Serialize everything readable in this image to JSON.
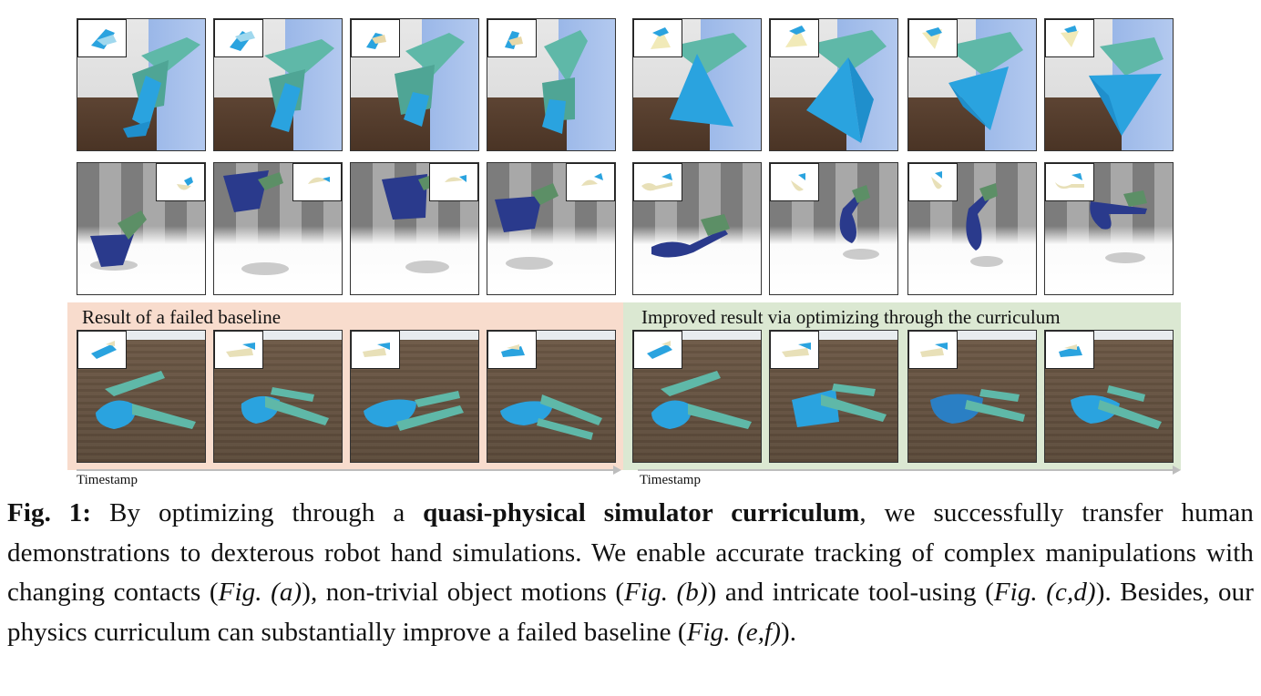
{
  "figure": {
    "band_failed_label": "Result of a failed baseline",
    "band_improved_label": "Improved result via optimizing through the curriculum",
    "timestamp_label_left": "Timestamp",
    "timestamp_label_right": "Timestamp",
    "colors": {
      "failed_band": "#f8dccd",
      "improved_band": "#dbe8d2",
      "robot_hand": "#5fb8a8",
      "object_blue": "#2aa3df",
      "bowl_navy": "#2a3a8c",
      "arrow_gray": "#bdbdbd"
    }
  },
  "caption": {
    "fig_label": "Fig. 1:",
    "text_1": " By optimizing through a ",
    "bold_1": "quasi-physical simulator curriculum",
    "text_2": ", we successfully transfer human demonstrations to dexterous robot hand simulations. We enable accurate tracking of complex manipulations with changing contacts (",
    "ref_a": "Fig. (a)",
    "text_3": "), non-trivial object motions (",
    "ref_b": "Fig. (b)",
    "text_4": ") and intricate tool-using (",
    "ref_cd": "Fig. (c,d)",
    "text_5": "). Besides, our physics curriculum can substantially improve a failed baseline (",
    "ref_ef": "Fig. (e,f)",
    "text_6": ")."
  }
}
